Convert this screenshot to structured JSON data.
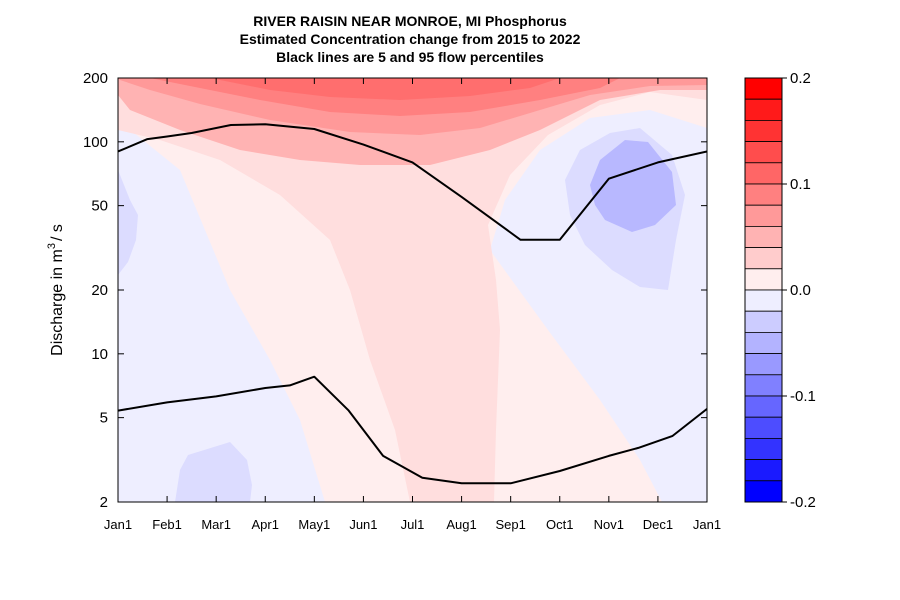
{
  "chart_data": {
    "type": "heatmap",
    "title": "RIVER RAISIN NEAR MONROE, MI  Phosphorus",
    "subtitle": "Estimated Concentration change from 2015 to 2022",
    "subtitle2": "Black lines are 5 and 95 flow percentiles",
    "ylabel_main": "Discharge in m",
    "ylabel_sup": "3",
    "ylabel_tail": "/ s",
    "x_ticks": [
      "Jan1",
      "Feb1",
      "Mar1",
      "Apr1",
      "May1",
      "Jun1",
      "Jul1",
      "Aug1",
      "Sep1",
      "Oct1",
      "Nov1",
      "Dec1",
      "Jan1"
    ],
    "y_scale": "log",
    "ylim": [
      2,
      200
    ],
    "y_ticks": [
      {
        "value": 2,
        "label": "2"
      },
      {
        "value": 5,
        "label": "5"
      },
      {
        "value": 10,
        "label": "10"
      },
      {
        "value": 20,
        "label": "20"
      },
      {
        "value": 50,
        "label": "50"
      },
      {
        "value": 100,
        "label": "100"
      },
      {
        "value": 200,
        "label": "200"
      }
    ],
    "colorbar": {
      "range": [
        -0.2,
        0.2
      ],
      "tick_labels": [
        {
          "value": 0.2,
          "label": "0.2"
        },
        {
          "value": 0.1,
          "label": "0.1"
        },
        {
          "value": 0.0,
          "label": "0.0"
        },
        {
          "value": -0.1,
          "label": "-0.1"
        },
        {
          "value": -0.2,
          "label": "-0.2"
        }
      ],
      "levels": [
        {
          "from": 0.18,
          "to": 0.2,
          "color": "#ff0000"
        },
        {
          "from": 0.16,
          "to": 0.18,
          "color": "#ff1a1a"
        },
        {
          "from": 0.14,
          "to": 0.16,
          "color": "#ff3333"
        },
        {
          "from": 0.12,
          "to": 0.14,
          "color": "#ff4d4d"
        },
        {
          "from": 0.1,
          "to": 0.12,
          "color": "#ff6666"
        },
        {
          "from": 0.08,
          "to": 0.1,
          "color": "#ff8080"
        },
        {
          "from": 0.06,
          "to": 0.08,
          "color": "#ff9999"
        },
        {
          "from": 0.04,
          "to": 0.06,
          "color": "#ffb3b3"
        },
        {
          "from": 0.02,
          "to": 0.04,
          "color": "#ffcccc"
        },
        {
          "from": 0.0,
          "to": 0.02,
          "color": "#ffeeee"
        },
        {
          "from": -0.02,
          "to": 0.0,
          "color": "#eeeeff"
        },
        {
          "from": -0.04,
          "to": -0.02,
          "color": "#ccccff"
        },
        {
          "from": -0.06,
          "to": -0.04,
          "color": "#b3b3ff"
        },
        {
          "from": -0.08,
          "to": -0.06,
          "color": "#9999ff"
        },
        {
          "from": -0.1,
          "to": -0.08,
          "color": "#8080ff"
        },
        {
          "from": -0.12,
          "to": -0.1,
          "color": "#6666ff"
        },
        {
          "from": -0.14,
          "to": -0.12,
          "color": "#4d4dff"
        },
        {
          "from": -0.16,
          "to": -0.14,
          "color": "#3333ff"
        },
        {
          "from": -0.18,
          "to": -0.16,
          "color": "#1a1aff"
        },
        {
          "from": -0.2,
          "to": -0.18,
          "color": "#0000ff"
        }
      ]
    },
    "flow_percentile_95": {
      "x_month_index": [
        0,
        0.6,
        1,
        1.5,
        2.3,
        3,
        4,
        5,
        6,
        7,
        8.2,
        9,
        10,
        11,
        12
      ],
      "y": [
        90,
        103,
        106,
        110,
        120,
        121,
        115,
        97,
        80,
        55,
        34.5,
        34.5,
        67,
        80,
        90
      ]
    },
    "flow_percentile_5": {
      "x_month_index": [
        0,
        1,
        2,
        3,
        3.5,
        4,
        4.7,
        5.4,
        6.2,
        7,
        8,
        9,
        10,
        10.6,
        11.3,
        12
      ],
      "y": [
        5.4,
        5.9,
        6.3,
        6.9,
        7.1,
        7.8,
        5.4,
        3.3,
        2.6,
        2.45,
        2.45,
        2.8,
        3.3,
        3.6,
        4.1,
        5.5
      ]
    },
    "contour_regions": [
      {
        "level": "0.00 to 0.02",
        "color": "#ffeeee",
        "shape": "upper_band"
      },
      {
        "level": "0.02 to 0.04",
        "color": "#ffdede",
        "shape": "central_plume"
      },
      {
        "level": "0.04 to 0.06",
        "color": "#ffb3b3",
        "shape": "top_band"
      },
      {
        "level": "0.06 to 0.08",
        "color": "#ff9999",
        "shape": "top_core"
      },
      {
        "level": "0.08 to 0.1",
        "color": "#ff8080",
        "shape": "top_core_inner"
      },
      {
        "level": "0.1 to 0.12",
        "color": "#ff6e6e",
        "shape": "top_peak"
      },
      {
        "level": "-0.02 to 0.0",
        "color": "#eeeeff",
        "shape": "nov_dec_mid"
      },
      {
        "level": "-0.04 to -0.02",
        "color": "#dcdcff",
        "shape": "nov_dec_core"
      },
      {
        "level": "-0.06 to -0.04",
        "color": "#b8b8ff",
        "shape": "nov_dec_inner"
      },
      {
        "level": "-0.04 to -0.02",
        "color": "#dcdcff",
        "shape": "jan_left_edge"
      },
      {
        "level": "-0.04 to -0.02",
        "color": "#dcdcff",
        "shape": "feb_mar_bottom"
      }
    ]
  }
}
